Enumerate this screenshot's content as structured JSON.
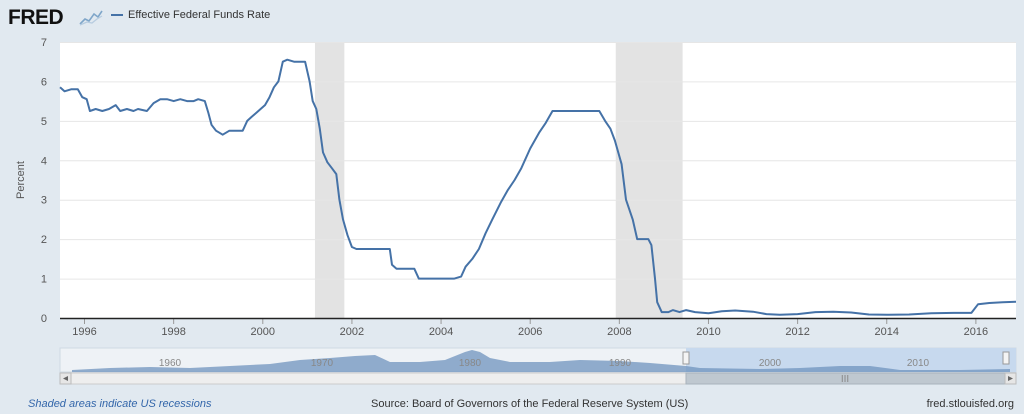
{
  "header": {
    "logo": "FRED",
    "logo_glyph": "fred-chart-glyph-icon",
    "legend_label": "Effective Federal Funds Rate",
    "series_color": "#4572a7"
  },
  "footer": {
    "recession_note": "Shaded areas indicate US recessions",
    "source": "Source: Board of Governors of the Federal Reserve System (US)",
    "site": "fred.stlouisfed.org"
  },
  "navigator": {
    "labels": [
      "1960",
      "1970",
      "1980",
      "1990",
      "2000",
      "2010"
    ],
    "left_arrow": "scroll-left-arrow-icon",
    "right_arrow": "scroll-right-arrow-icon",
    "scrollbar_grip": "III"
  },
  "chart_data": {
    "type": "line",
    "ylabel": "Percent",
    "xlabel": "",
    "xlim": [
      1995.45,
      2016.9
    ],
    "ylim": [
      0,
      7
    ],
    "yticks": [
      0,
      1,
      2,
      3,
      4,
      5,
      6,
      7
    ],
    "xticks": [
      1996,
      1998,
      2000,
      2002,
      2004,
      2006,
      2008,
      2010,
      2012,
      2014,
      2016
    ],
    "grid": "horizontal",
    "recessions": [
      [
        2001.17,
        2001.83
      ],
      [
        2007.92,
        2009.42
      ]
    ],
    "series": [
      {
        "name": "Effective Federal Funds Rate",
        "color": "#4572a7",
        "points": [
          [
            1995.45,
            5.85
          ],
          [
            1995.55,
            5.75
          ],
          [
            1995.7,
            5.8
          ],
          [
            1995.85,
            5.8
          ],
          [
            1995.95,
            5.6
          ],
          [
            1996.05,
            5.55
          ],
          [
            1996.12,
            5.25
          ],
          [
            1996.25,
            5.3
          ],
          [
            1996.4,
            5.25
          ],
          [
            1996.55,
            5.3
          ],
          [
            1996.7,
            5.4
          ],
          [
            1996.8,
            5.25
          ],
          [
            1996.95,
            5.3
          ],
          [
            1997.1,
            5.25
          ],
          [
            1997.2,
            5.3
          ],
          [
            1997.4,
            5.25
          ],
          [
            1997.55,
            5.45
          ],
          [
            1997.7,
            5.55
          ],
          [
            1997.85,
            5.55
          ],
          [
            1998.0,
            5.5
          ],
          [
            1998.15,
            5.55
          ],
          [
            1998.3,
            5.5
          ],
          [
            1998.45,
            5.5
          ],
          [
            1998.55,
            5.55
          ],
          [
            1998.7,
            5.5
          ],
          [
            1998.78,
            5.2
          ],
          [
            1998.85,
            4.9
          ],
          [
            1998.95,
            4.75
          ],
          [
            1999.1,
            4.65
          ],
          [
            1999.25,
            4.75
          ],
          [
            1999.4,
            4.75
          ],
          [
            1999.55,
            4.75
          ],
          [
            1999.65,
            5.0
          ],
          [
            1999.75,
            5.1
          ],
          [
            1999.85,
            5.2
          ],
          [
            1999.95,
            5.3
          ],
          [
            2000.05,
            5.4
          ],
          [
            2000.15,
            5.6
          ],
          [
            2000.25,
            5.85
          ],
          [
            2000.35,
            6.0
          ],
          [
            2000.45,
            6.5
          ],
          [
            2000.55,
            6.55
          ],
          [
            2000.7,
            6.5
          ],
          [
            2000.85,
            6.5
          ],
          [
            2000.95,
            6.5
          ],
          [
            2001.05,
            6.0
          ],
          [
            2001.12,
            5.5
          ],
          [
            2001.2,
            5.3
          ],
          [
            2001.28,
            4.8
          ],
          [
            2001.35,
            4.2
          ],
          [
            2001.45,
            3.95
          ],
          [
            2001.55,
            3.8
          ],
          [
            2001.65,
            3.65
          ],
          [
            2001.72,
            3.0
          ],
          [
            2001.8,
            2.5
          ],
          [
            2001.9,
            2.1
          ],
          [
            2002.0,
            1.8
          ],
          [
            2002.1,
            1.75
          ],
          [
            2002.3,
            1.75
          ],
          [
            2002.5,
            1.75
          ],
          [
            2002.7,
            1.75
          ],
          [
            2002.85,
            1.75
          ],
          [
            2002.9,
            1.35
          ],
          [
            2003.0,
            1.25
          ],
          [
            2003.2,
            1.25
          ],
          [
            2003.4,
            1.25
          ],
          [
            2003.5,
            1.0
          ],
          [
            2003.7,
            1.0
          ],
          [
            2003.9,
            1.0
          ],
          [
            2004.1,
            1.0
          ],
          [
            2004.3,
            1.0
          ],
          [
            2004.45,
            1.05
          ],
          [
            2004.55,
            1.3
          ],
          [
            2004.7,
            1.5
          ],
          [
            2004.85,
            1.75
          ],
          [
            2005.0,
            2.15
          ],
          [
            2005.15,
            2.5
          ],
          [
            2005.35,
            2.95
          ],
          [
            2005.5,
            3.25
          ],
          [
            2005.65,
            3.5
          ],
          [
            2005.8,
            3.8
          ],
          [
            2006.0,
            4.3
          ],
          [
            2006.2,
            4.7
          ],
          [
            2006.35,
            4.95
          ],
          [
            2006.5,
            5.25
          ],
          [
            2006.7,
            5.25
          ],
          [
            2007.0,
            5.25
          ],
          [
            2007.3,
            5.25
          ],
          [
            2007.55,
            5.25
          ],
          [
            2007.68,
            5.0
          ],
          [
            2007.8,
            4.8
          ],
          [
            2007.9,
            4.5
          ],
          [
            2008.05,
            3.9
          ],
          [
            2008.15,
            3.0
          ],
          [
            2008.3,
            2.5
          ],
          [
            2008.4,
            2.0
          ],
          [
            2008.55,
            2.0
          ],
          [
            2008.65,
            2.0
          ],
          [
            2008.72,
            1.85
          ],
          [
            2008.8,
            1.0
          ],
          [
            2008.85,
            0.4
          ],
          [
            2008.95,
            0.15
          ],
          [
            2009.1,
            0.15
          ],
          [
            2009.2,
            0.2
          ],
          [
            2009.35,
            0.15
          ],
          [
            2009.5,
            0.2
          ],
          [
            2009.7,
            0.15
          ],
          [
            2010.0,
            0.12
          ],
          [
            2010.3,
            0.17
          ],
          [
            2010.6,
            0.19
          ],
          [
            2011.0,
            0.16
          ],
          [
            2011.3,
            0.1
          ],
          [
            2011.6,
            0.08
          ],
          [
            2012.0,
            0.1
          ],
          [
            2012.4,
            0.15
          ],
          [
            2012.8,
            0.16
          ],
          [
            2013.2,
            0.14
          ],
          [
            2013.6,
            0.09
          ],
          [
            2014.0,
            0.08
          ],
          [
            2014.5,
            0.09
          ],
          [
            2015.0,
            0.12
          ],
          [
            2015.5,
            0.13
          ],
          [
            2015.9,
            0.13
          ],
          [
            2016.05,
            0.35
          ],
          [
            2016.3,
            0.38
          ],
          [
            2016.6,
            0.4
          ],
          [
            2016.9,
            0.41
          ]
        ]
      }
    ]
  }
}
